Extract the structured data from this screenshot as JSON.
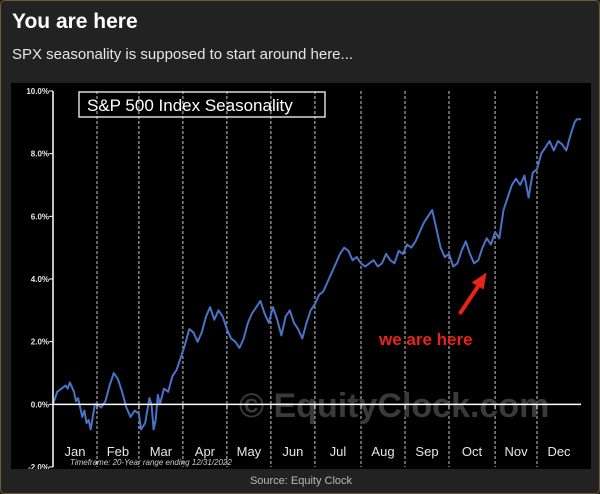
{
  "header": {
    "title": "You are here",
    "subtitle": "SPX seasonality is supposed to start around here..."
  },
  "footer": {
    "source": "Source: Equity Clock"
  },
  "chart_data": {
    "type": "line",
    "title": "S&P 500 Index Seasonality",
    "footnote": "Timeframe: 20-Year range ending 12/31/2022",
    "watermark": "© EquityClock.com",
    "annotation": {
      "text": "we are here",
      "color": "#e8231c",
      "points_to": {
        "day": 207,
        "value": 4.4
      }
    },
    "x_unit": "day of year",
    "xlim": [
      1,
      253
    ],
    "ylim": [
      -2.0,
      10.0
    ],
    "y_ticks": [
      -2.0,
      0.0,
      2.0,
      4.0,
      6.0,
      8.0,
      10.0
    ],
    "y_tick_labels": [
      "-2.0%",
      "0.0%",
      "2.0%",
      "4.0%",
      "6.0%",
      "8.0%",
      "10.0%"
    ],
    "months": [
      "Jan",
      "Feb",
      "Mar",
      "Apr",
      "May",
      "Jun",
      "Jul",
      "Aug",
      "Sep",
      "Oct",
      "Nov",
      "Dec"
    ],
    "month_starts": [
      1,
      22,
      42,
      63,
      84,
      105,
      126,
      148,
      169,
      190,
      212,
      232,
      253
    ],
    "grid": "vertical dashed at month boundaries",
    "line_color": "#4a73c8",
    "series": [
      {
        "values": [
          [
            1,
            0.0
          ],
          [
            3,
            0.4
          ],
          [
            5,
            0.5
          ],
          [
            7,
            0.6
          ],
          [
            8,
            0.5
          ],
          [
            9,
            0.7
          ],
          [
            11,
            0.4
          ],
          [
            12,
            0.1
          ],
          [
            13,
            0.2
          ],
          [
            14,
            -0.1
          ],
          [
            15,
            -0.4
          ],
          [
            16,
            -0.2
          ],
          [
            17,
            -0.6
          ],
          [
            18,
            -0.5
          ],
          [
            19,
            -0.8
          ],
          [
            20,
            -0.4
          ],
          [
            21,
            0.0
          ],
          [
            22,
            0.0
          ],
          [
            24,
            -0.1
          ],
          [
            26,
            0.1
          ],
          [
            28,
            0.6
          ],
          [
            30,
            1.0
          ],
          [
            32,
            0.8
          ],
          [
            34,
            0.4
          ],
          [
            36,
            -0.1
          ],
          [
            38,
            -0.4
          ],
          [
            40,
            -0.2
          ],
          [
            42,
            -0.3
          ],
          [
            43,
            -0.8
          ],
          [
            45,
            -0.6
          ],
          [
            47,
            0.2
          ],
          [
            48,
            0.0
          ],
          [
            49,
            -0.8
          ],
          [
            50,
            -0.5
          ],
          [
            51,
            0.3
          ],
          [
            52,
            0.0
          ],
          [
            54,
            0.5
          ],
          [
            56,
            0.4
          ],
          [
            58,
            0.9
          ],
          [
            60,
            1.1
          ],
          [
            62,
            1.5
          ],
          [
            64,
            1.9
          ],
          [
            66,
            2.4
          ],
          [
            68,
            2.3
          ],
          [
            70,
            2.0
          ],
          [
            72,
            2.3
          ],
          [
            74,
            2.8
          ],
          [
            76,
            3.1
          ],
          [
            78,
            2.7
          ],
          [
            80,
            3.0
          ],
          [
            82,
            2.8
          ],
          [
            84,
            2.4
          ],
          [
            86,
            2.1
          ],
          [
            88,
            2.0
          ],
          [
            90,
            1.8
          ],
          [
            92,
            2.1
          ],
          [
            94,
            2.6
          ],
          [
            96,
            2.9
          ],
          [
            98,
            3.1
          ],
          [
            100,
            3.3
          ],
          [
            102,
            2.9
          ],
          [
            104,
            2.6
          ],
          [
            106,
            3.1
          ],
          [
            108,
            2.7
          ],
          [
            110,
            2.2
          ],
          [
            112,
            2.8
          ],
          [
            114,
            3.0
          ],
          [
            116,
            2.6
          ],
          [
            118,
            2.4
          ],
          [
            120,
            2.1
          ],
          [
            122,
            2.6
          ],
          [
            124,
            3.0
          ],
          [
            126,
            3.2
          ],
          [
            128,
            3.5
          ],
          [
            130,
            3.6
          ],
          [
            132,
            3.9
          ],
          [
            134,
            4.2
          ],
          [
            136,
            4.5
          ],
          [
            138,
            4.8
          ],
          [
            140,
            5.0
          ],
          [
            142,
            4.9
          ],
          [
            144,
            4.6
          ],
          [
            146,
            4.7
          ],
          [
            148,
            4.5
          ],
          [
            150,
            4.4
          ],
          [
            152,
            4.5
          ],
          [
            154,
            4.6
          ],
          [
            156,
            4.4
          ],
          [
            158,
            4.5
          ],
          [
            160,
            4.8
          ],
          [
            162,
            4.6
          ],
          [
            164,
            4.5
          ],
          [
            166,
            4.9
          ],
          [
            168,
            4.8
          ],
          [
            170,
            5.1
          ],
          [
            172,
            5.0
          ],
          [
            174,
            5.2
          ],
          [
            176,
            5.5
          ],
          [
            178,
            5.8
          ],
          [
            180,
            6.0
          ],
          [
            182,
            6.2
          ],
          [
            184,
            5.6
          ],
          [
            186,
            5.0
          ],
          [
            188,
            4.7
          ],
          [
            190,
            4.8
          ],
          [
            192,
            4.4
          ],
          [
            194,
            4.5
          ],
          [
            196,
            4.9
          ],
          [
            198,
            5.2
          ],
          [
            200,
            4.8
          ],
          [
            202,
            4.5
          ],
          [
            204,
            4.6
          ],
          [
            206,
            5.0
          ],
          [
            208,
            5.3
          ],
          [
            210,
            5.1
          ],
          [
            212,
            5.5
          ],
          [
            214,
            5.3
          ],
          [
            216,
            6.2
          ],
          [
            218,
            6.6
          ],
          [
            220,
            7.0
          ],
          [
            222,
            7.2
          ],
          [
            224,
            7.0
          ],
          [
            226,
            7.3
          ],
          [
            228,
            6.6
          ],
          [
            230,
            7.4
          ],
          [
            232,
            7.5
          ],
          [
            234,
            8.0
          ],
          [
            236,
            8.2
          ],
          [
            238,
            8.4
          ],
          [
            240,
            8.1
          ],
          [
            242,
            8.4
          ],
          [
            244,
            8.3
          ],
          [
            246,
            8.1
          ],
          [
            248,
            8.6
          ],
          [
            250,
            9.0
          ],
          [
            251,
            9.1
          ],
          [
            253,
            9.1
          ]
        ]
      }
    ]
  }
}
